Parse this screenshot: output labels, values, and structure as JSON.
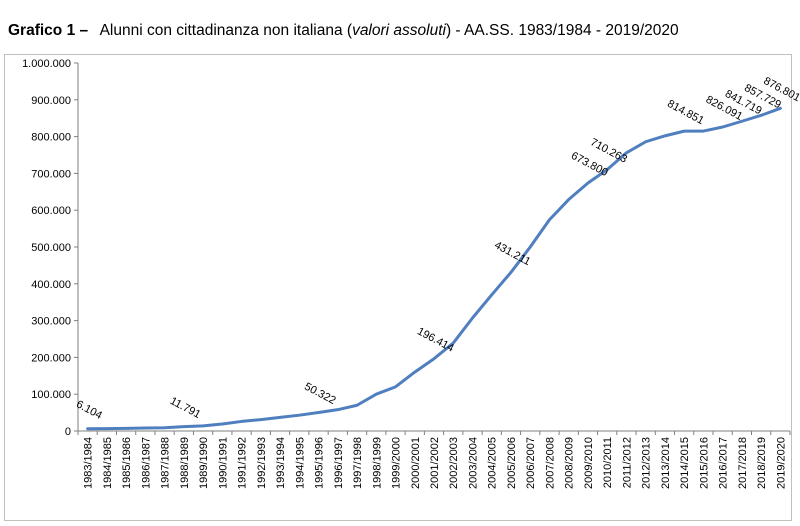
{
  "title": {
    "lead": "Grafico 1 –",
    "main": "Alunni con cittadinanza non italiana (",
    "italic": "valori assoluti",
    "tail": ") - AA.SS. 1983/1984 - 2019/2020"
  },
  "chart_data": {
    "type": "line",
    "title": "Grafico 1 – Alunni con cittadinanza non italiana (valori assoluti) - AA.SS. 1983/1984 - 2019/2020",
    "xlabel": "",
    "ylabel": "",
    "ylim": [
      0,
      1000000
    ],
    "yticks": [
      "0",
      "100.000",
      "200.000",
      "300.000",
      "400.000",
      "500.000",
      "600.000",
      "700.000",
      "800.000",
      "900.000",
      "1.000.000"
    ],
    "grid": false,
    "legend": "none",
    "line_color": "#4f7fbf",
    "categories": [
      "1983/1984",
      "1984/1985",
      "1985/1986",
      "1986/1987",
      "1987/1988",
      "1988/1989",
      "1989/1990",
      "1990/1991",
      "1991/1992",
      "1992/1993",
      "1993/1994",
      "1994/1995",
      "1995/1996",
      "1996/1997",
      "1997/1998",
      "1998/1999",
      "1999/2000",
      "2000/2001",
      "2001/2002",
      "2002/2003",
      "2003/2004",
      "2004/2005",
      "2005/2006",
      "2006/2007",
      "2007/2008",
      "2008/2009",
      "2009/2010",
      "2010/2011",
      "2011/2012",
      "2012/2013",
      "2013/2014",
      "2014/2015",
      "2015/2016",
      "2016/2017",
      "2017/2018",
      "2018/2019",
      "2019/2020"
    ],
    "values": [
      6104,
      6500,
      7000,
      8000,
      9000,
      11791,
      14000,
      19000,
      26000,
      31000,
      37000,
      43000,
      50322,
      58000,
      70000,
      100000,
      120000,
      160000,
      196414,
      239000,
      307000,
      370000,
      431211,
      500000,
      574000,
      629000,
      673800,
      710263,
      756000,
      786000,
      802000,
      814851,
      815000,
      826091,
      841719,
      857729,
      876801
    ],
    "data_labels": [
      {
        "index": 0,
        "text": "6.104"
      },
      {
        "index": 5,
        "text": "11.791"
      },
      {
        "index": 12,
        "text": "50.322"
      },
      {
        "index": 18,
        "text": "196.414"
      },
      {
        "index": 22,
        "text": "431.211"
      },
      {
        "index": 26,
        "text": "673.800"
      },
      {
        "index": 27,
        "text": "710.263"
      },
      {
        "index": 31,
        "text": "814.851"
      },
      {
        "index": 33,
        "text": "826.091"
      },
      {
        "index": 34,
        "text": "841.719"
      },
      {
        "index": 35,
        "text": "857.729"
      },
      {
        "index": 36,
        "text": "876.801"
      }
    ]
  }
}
